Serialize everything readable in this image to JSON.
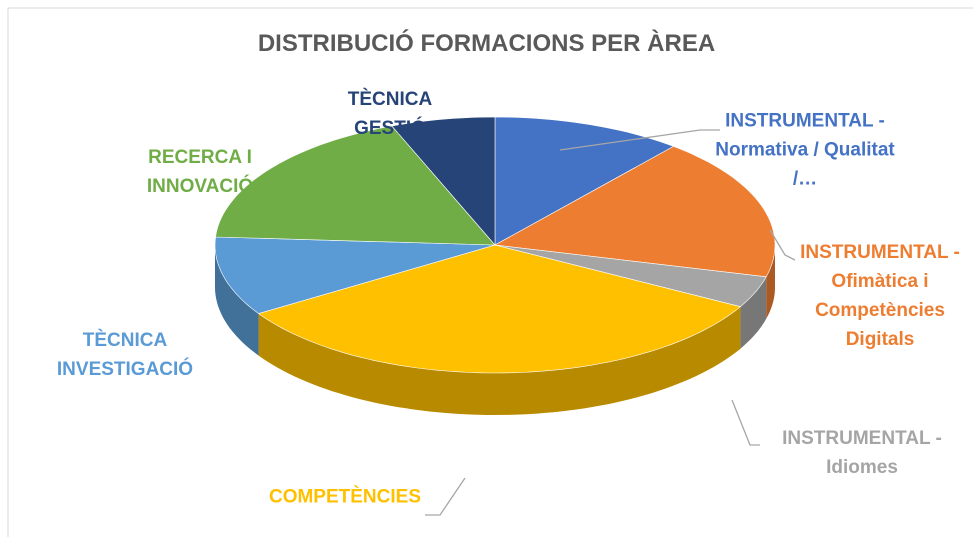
{
  "chart_data": {
    "type": "pie",
    "title": "DISTRIBUCIÓ FORMACIONS PER ÀREA",
    "categories": [
      "INSTRUMENTAL - Normativa / Qualitat /…",
      "INSTRUMENTAL - Ofimàtica i Competències Digitals",
      "INSTRUMENTAL - Idiomes",
      "COMPETÈNCIES",
      "TÈCNICA INVESTIGACIÓ",
      "RECERCA I INNOVACIÓ",
      "TÈCNICA GESTIÓ"
    ],
    "values": [
      11,
      18,
      4,
      33,
      10,
      18,
      6
    ],
    "colors": [
      "#4472c4",
      "#ed7d31",
      "#a5a5a5",
      "#ffc000",
      "#5b9bd5",
      "#70ad47",
      "#264478"
    ]
  }
}
